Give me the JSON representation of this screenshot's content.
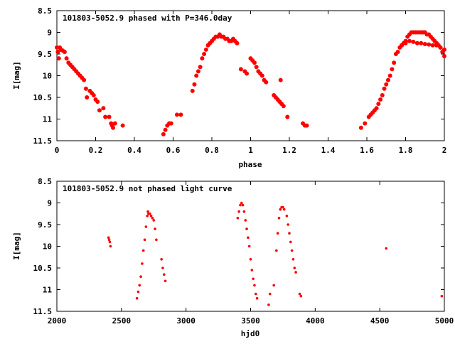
{
  "chart_data": [
    {
      "type": "scatter",
      "title": "101803-5052.9 phased with P=346.0day",
      "xlabel": "phase",
      "ylabel": "I[mag]",
      "xlim": [
        0,
        2
      ],
      "ylim": [
        8.5,
        11.5
      ],
      "y_inverted": true,
      "grid": false,
      "marker": "filled-circle-large",
      "color": "#ff0000",
      "x_ticks": [
        "0",
        "0.2",
        "0.4",
        "0.6",
        "0.8",
        "1",
        "1.2",
        "1.4",
        "1.6",
        "1.8",
        "2"
      ],
      "y_ticks": [
        "8.5",
        "9",
        "9.5",
        "10",
        "10.5",
        "11",
        "11.5"
      ],
      "points": [
        [
          0.0,
          9.35
        ],
        [
          0.005,
          9.45
        ],
        [
          0.01,
          9.6
        ],
        [
          0.015,
          9.35
        ],
        [
          0.02,
          9.4
        ],
        [
          0.03,
          9.42
        ],
        [
          0.04,
          9.45
        ],
        [
          0.05,
          9.6
        ],
        [
          0.06,
          9.7
        ],
        [
          0.07,
          9.75
        ],
        [
          0.08,
          9.8
        ],
        [
          0.09,
          9.85
        ],
        [
          0.1,
          9.9
        ],
        [
          0.11,
          9.95
        ],
        [
          0.12,
          10.0
        ],
        [
          0.13,
          10.05
        ],
        [
          0.14,
          10.1
        ],
        [
          0.15,
          10.3
        ],
        [
          0.155,
          10.5
        ],
        [
          0.17,
          10.35
        ],
        [
          0.18,
          10.4
        ],
        [
          0.19,
          10.45
        ],
        [
          0.2,
          10.55
        ],
        [
          0.21,
          10.6
        ],
        [
          0.22,
          10.8
        ],
        [
          0.24,
          10.75
        ],
        [
          0.25,
          10.95
        ],
        [
          0.27,
          10.95
        ],
        [
          0.28,
          11.1
        ],
        [
          0.285,
          11.15
        ],
        [
          0.29,
          11.2
        ],
        [
          0.3,
          11.1
        ],
        [
          0.34,
          11.15
        ],
        [
          0.55,
          11.35
        ],
        [
          0.56,
          11.25
        ],
        [
          0.57,
          11.15
        ],
        [
          0.58,
          11.1
        ],
        [
          0.59,
          11.1
        ],
        [
          0.62,
          10.9
        ],
        [
          0.64,
          10.9
        ],
        [
          0.7,
          10.35
        ],
        [
          0.71,
          10.2
        ],
        [
          0.72,
          10.0
        ],
        [
          0.73,
          9.9
        ],
        [
          0.74,
          9.8
        ],
        [
          0.75,
          9.6
        ],
        [
          0.76,
          9.5
        ],
        [
          0.77,
          9.4
        ],
        [
          0.78,
          9.3
        ],
        [
          0.79,
          9.25
        ],
        [
          0.8,
          9.2
        ],
        [
          0.81,
          9.15
        ],
        [
          0.82,
          9.1
        ],
        [
          0.83,
          9.1
        ],
        [
          0.84,
          9.05
        ],
        [
          0.85,
          9.1
        ],
        [
          0.86,
          9.1
        ],
        [
          0.87,
          9.15
        ],
        [
          0.88,
          9.15
        ],
        [
          0.89,
          9.2
        ],
        [
          0.9,
          9.2
        ],
        [
          0.91,
          9.15
        ],
        [
          0.92,
          9.2
        ],
        [
          0.93,
          9.25
        ],
        [
          0.95,
          9.85
        ],
        [
          0.97,
          9.9
        ],
        [
          0.98,
          9.95
        ],
        [
          1.0,
          9.6
        ],
        [
          1.01,
          9.65
        ],
        [
          1.02,
          9.7
        ],
        [
          1.03,
          9.8
        ],
        [
          1.04,
          9.9
        ],
        [
          1.05,
          9.95
        ],
        [
          1.06,
          10.0
        ],
        [
          1.07,
          10.1
        ],
        [
          1.08,
          10.15
        ],
        [
          1.12,
          10.45
        ],
        [
          1.13,
          10.5
        ],
        [
          1.14,
          10.55
        ],
        [
          1.15,
          10.6
        ],
        [
          1.155,
          10.1
        ],
        [
          1.16,
          10.65
        ],
        [
          1.17,
          10.7
        ],
        [
          1.19,
          10.95
        ],
        [
          1.27,
          11.1
        ],
        [
          1.28,
          11.15
        ],
        [
          1.29,
          11.15
        ],
        [
          1.57,
          11.2
        ],
        [
          1.59,
          11.1
        ],
        [
          1.61,
          10.95
        ],
        [
          1.62,
          10.9
        ],
        [
          1.63,
          10.85
        ],
        [
          1.64,
          10.8
        ],
        [
          1.65,
          10.75
        ],
        [
          1.66,
          10.65
        ],
        [
          1.67,
          10.55
        ],
        [
          1.68,
          10.45
        ],
        [
          1.69,
          10.3
        ],
        [
          1.7,
          10.2
        ],
        [
          1.71,
          10.1
        ],
        [
          1.72,
          10.0
        ],
        [
          1.73,
          9.85
        ],
        [
          1.74,
          9.7
        ],
        [
          1.75,
          9.5
        ],
        [
          1.76,
          9.45
        ],
        [
          1.77,
          9.35
        ],
        [
          1.78,
          9.3
        ],
        [
          1.79,
          9.25
        ],
        [
          1.8,
          9.2
        ],
        [
          1.81,
          9.1
        ],
        [
          1.82,
          9.05
        ],
        [
          1.83,
          9.0
        ],
        [
          1.84,
          9.0
        ],
        [
          1.85,
          9.0
        ],
        [
          1.86,
          9.0
        ],
        [
          1.87,
          9.0
        ],
        [
          1.88,
          9.0
        ],
        [
          1.89,
          9.0
        ],
        [
          1.9,
          9.0
        ],
        [
          1.91,
          9.05
        ],
        [
          1.92,
          9.05
        ],
        [
          1.93,
          9.1
        ],
        [
          1.94,
          9.15
        ],
        [
          1.95,
          9.2
        ],
        [
          1.96,
          9.25
        ],
        [
          1.97,
          9.3
        ],
        [
          1.98,
          9.35
        ],
        [
          1.99,
          9.45
        ],
        [
          2.0,
          9.55
        ],
        [
          1.78,
          9.3
        ],
        [
          1.8,
          9.25
        ],
        [
          1.82,
          9.2
        ],
        [
          1.84,
          9.22
        ],
        [
          1.86,
          9.25
        ],
        [
          1.88,
          9.25
        ],
        [
          1.9,
          9.27
        ],
        [
          1.92,
          9.28
        ],
        [
          1.94,
          9.3
        ],
        [
          1.96,
          9.3
        ],
        [
          1.98,
          9.35
        ],
        [
          2.0,
          9.4
        ]
      ]
    },
    {
      "type": "scatter",
      "title": "101803-5052.9 not phased light curve",
      "xlabel": "hjd0",
      "ylabel": "I[mag]",
      "xlim": [
        2000,
        5000
      ],
      "ylim": [
        8.5,
        11.5
      ],
      "y_inverted": true,
      "grid": false,
      "marker": "filled-circle-small",
      "color": "#ff0000",
      "x_ticks": [
        "2000",
        "2500",
        "3000",
        "3500",
        "4000",
        "4500",
        "5000"
      ],
      "y_ticks": [
        "8.5",
        "9",
        "9.5",
        "10",
        "10.5",
        "11",
        "11.5"
      ],
      "points": [
        [
          2400,
          9.8
        ],
        [
          2405,
          9.85
        ],
        [
          2410,
          9.9
        ],
        [
          2415,
          10.0
        ],
        [
          2620,
          11.2
        ],
        [
          2630,
          11.05
        ],
        [
          2640,
          10.9
        ],
        [
          2650,
          10.7
        ],
        [
          2660,
          10.4
        ],
        [
          2670,
          10.1
        ],
        [
          2680,
          9.85
        ],
        [
          2690,
          9.55
        ],
        [
          2700,
          9.3
        ],
        [
          2705,
          9.2
        ],
        [
          2710,
          9.25
        ],
        [
          2720,
          9.25
        ],
        [
          2730,
          9.3
        ],
        [
          2740,
          9.35
        ],
        [
          2750,
          9.4
        ],
        [
          2760,
          9.6
        ],
        [
          2770,
          9.85
        ],
        [
          2810,
          10.3
        ],
        [
          2820,
          10.5
        ],
        [
          2830,
          10.65
        ],
        [
          2840,
          10.8
        ],
        [
          3400,
          9.35
        ],
        [
          3410,
          9.2
        ],
        [
          3420,
          9.05
        ],
        [
          3430,
          9.0
        ],
        [
          3440,
          9.05
        ],
        [
          3450,
          9.2
        ],
        [
          3460,
          9.4
        ],
        [
          3470,
          9.6
        ],
        [
          3480,
          9.8
        ],
        [
          3490,
          10.0
        ],
        [
          3500,
          10.3
        ],
        [
          3510,
          10.55
        ],
        [
          3520,
          10.75
        ],
        [
          3530,
          10.9
        ],
        [
          3540,
          11.1
        ],
        [
          3550,
          11.2
        ],
        [
          3640,
          11.35
        ],
        [
          3650,
          11.1
        ],
        [
          3680,
          10.9
        ],
        [
          3700,
          10.1
        ],
        [
          3710,
          9.7
        ],
        [
          3720,
          9.35
        ],
        [
          3730,
          9.15
        ],
        [
          3740,
          9.1
        ],
        [
          3750,
          9.1
        ],
        [
          3760,
          9.15
        ],
        [
          3780,
          9.3
        ],
        [
          3790,
          9.5
        ],
        [
          3800,
          9.7
        ],
        [
          3810,
          9.9
        ],
        [
          3820,
          10.1
        ],
        [
          3830,
          10.3
        ],
        [
          3840,
          10.5
        ],
        [
          3850,
          10.6
        ],
        [
          3880,
          11.1
        ],
        [
          3890,
          11.15
        ],
        [
          4550,
          10.05
        ],
        [
          4980,
          11.15
        ]
      ]
    }
  ]
}
